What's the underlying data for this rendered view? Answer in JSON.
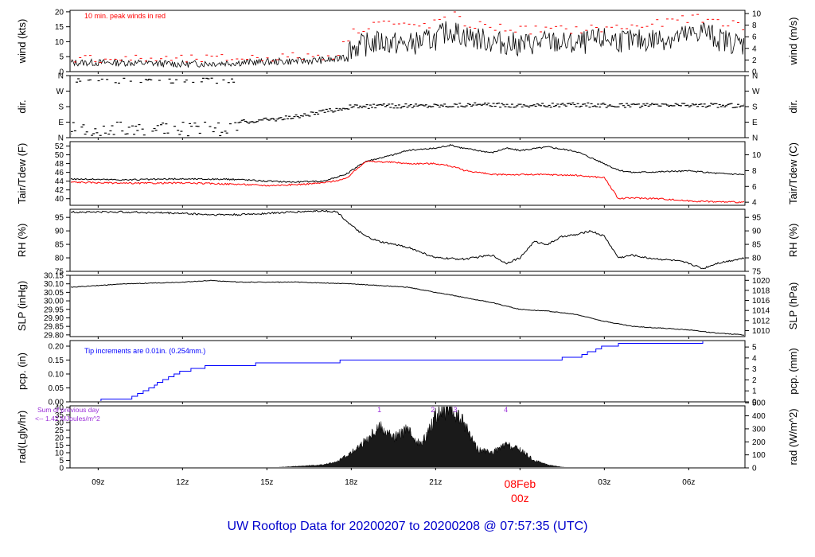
{
  "title": "UW Rooftop Data for 20200207  to  20200208 @ 07:57:35  (UTC)",
  "colors": {
    "title": "#0000cc",
    "red": "#ff0000",
    "blue": "#0000ff",
    "purple": "#9b30d9",
    "black": "#000000"
  },
  "x_axis": {
    "ticks": [
      "09z",
      "12z",
      "15z",
      "18z",
      "21z",
      "03z",
      "06z"
    ],
    "tick_hours": [
      9,
      12,
      15,
      18,
      21,
      27,
      30
    ],
    "date_label": "08Feb",
    "date_sub": "00z",
    "date_hour": 24,
    "range_hours": [
      8.0,
      32.0
    ]
  },
  "panels": [
    {
      "key": "wind",
      "left_label": "wind (kts)",
      "right_label": "wind (m/s)",
      "left_ticks": [
        "0",
        "5",
        "10",
        "15",
        "20"
      ],
      "right_ticks": [
        "0",
        "2",
        "4",
        "6",
        "8",
        "10"
      ],
      "left_range": [
        0,
        20.5
      ],
      "note": "10 min. peak winds in red"
    },
    {
      "key": "dir",
      "left_label": "dir.",
      "right_label": "dir.",
      "left_ticks": [
        "N",
        "E",
        "S",
        "W",
        "N"
      ],
      "right_ticks": [
        "N",
        "E",
        "S",
        "W",
        "N"
      ],
      "left_range": [
        0,
        360
      ]
    },
    {
      "key": "temp",
      "left_label": "Tair/Tdew (F)",
      "right_label": "Tair/Tdew (C)",
      "left_ticks": [
        "40",
        "42",
        "44",
        "46",
        "48",
        "50",
        "52"
      ],
      "right_ticks": [
        "4",
        "6",
        "8",
        "10"
      ],
      "left_range": [
        38.5,
        53.0
      ]
    },
    {
      "key": "rh",
      "left_label": "RH (%)",
      "right_label": "RH (%)",
      "left_ticks": [
        "75",
        "80",
        "85",
        "90",
        "95"
      ],
      "right_ticks": [
        "75",
        "80",
        "85",
        "90",
        "95"
      ],
      "left_range": [
        75,
        98
      ]
    },
    {
      "key": "slp",
      "left_label": "SLP (inHg)",
      "right_label": "SLP (hPa)",
      "left_ticks": [
        "29.80",
        "29.85",
        "29.90",
        "29.95",
        "30.00",
        "30.05",
        "30.10",
        "30.15"
      ],
      "right_ticks": [
        "1010",
        "1012",
        "1014",
        "1016",
        "1018",
        "1020"
      ],
      "left_range": [
        29.79,
        30.15
      ]
    },
    {
      "key": "pcp",
      "left_label": "pcp. (in)",
      "right_label": "pcp. (mm)",
      "left_ticks": [
        "0.00",
        "0.05",
        "0.10",
        "0.15",
        "0.20"
      ],
      "right_ticks": [
        "0",
        "1",
        "2",
        "3",
        "4",
        "5"
      ],
      "left_range": [
        0,
        0.22
      ],
      "note": "Tip increments are 0.01in. (0.254mm.)"
    },
    {
      "key": "rad",
      "left_label": "rad(Lgly/hr)",
      "right_label": "rad (W/m^2)",
      "left_ticks": [
        "0",
        "5",
        "10",
        "15",
        "20",
        "25",
        "30",
        "35",
        "40"
      ],
      "right_ticks": [
        "0",
        "100",
        "200",
        "300",
        "400",
        "500"
      ],
      "left_range": [
        0,
        41
      ],
      "note1": "Sum of previous day",
      "note2": "<-- 1.42 MJoules/m^2",
      "markers": [
        "1",
        "2",
        "3",
        "4"
      ],
      "marker_hours": [
        19.0,
        20.9,
        21.7,
        23.5
      ]
    }
  ],
  "chart_data": {
    "type": "line",
    "x_units": "hours UTC from 2020-02-07 00z",
    "series": [
      {
        "name": "wind speed (kts)",
        "x": [
          8,
          10,
          12,
          14,
          16,
          17.5,
          18,
          19,
          20,
          21,
          21.5,
          22,
          23,
          24,
          25,
          26,
          27,
          28,
          29,
          30,
          30.5,
          31,
          32
        ],
        "values": [
          3,
          3,
          2.5,
          3,
          3.5,
          4,
          8,
          10,
          9,
          11,
          14,
          12,
          10,
          9,
          10,
          9,
          11,
          10,
          11,
          12,
          14,
          11,
          9
        ]
      },
      {
        "name": "peak wind 10 min (kts)",
        "x": [
          8,
          12,
          16,
          17.5,
          18,
          19,
          20,
          21,
          21.5,
          22,
          24,
          26,
          28,
          29,
          30,
          31,
          32
        ],
        "values": [
          4.5,
          4,
          5,
          5.5,
          13,
          17,
          15,
          16,
          20,
          16,
          14,
          14,
          15,
          16,
          18,
          17,
          15
        ]
      },
      {
        "name": "wind direction (deg)",
        "x": [
          8,
          10,
          12,
          13.5,
          14,
          16,
          17,
          18,
          20,
          22,
          24,
          26,
          28,
          30,
          32
        ],
        "values": [
          355,
          355,
          350,
          345,
          90,
          120,
          150,
          180,
          185,
          190,
          188,
          190,
          185,
          190,
          185
        ]
      },
      {
        "name": "Tair (F)",
        "x": [
          8,
          10,
          12,
          14,
          15,
          16,
          17,
          17.8,
          18.5,
          19.5,
          20,
          21,
          21.5,
          22,
          23,
          23.5,
          24,
          25,
          26,
          27,
          27.5,
          28,
          30,
          31,
          32
        ],
        "values": [
          44.5,
          44.3,
          44.5,
          44.4,
          44,
          43.8,
          44,
          45.5,
          48.5,
          50,
          51,
          51.5,
          52.2,
          51.5,
          50.5,
          51.5,
          51,
          51.8,
          50.8,
          48,
          46.5,
          46,
          46.3,
          45.8,
          45.5
        ]
      },
      {
        "name": "Tdew (F)",
        "x": [
          8,
          10,
          12,
          14,
          15,
          16,
          17,
          17.8,
          18.5,
          19.5,
          20,
          21,
          21.5,
          22,
          23,
          24,
          25,
          26,
          27,
          27.5,
          28,
          29,
          30,
          31,
          32
        ],
        "values": [
          43.8,
          43.5,
          43.6,
          43.3,
          43,
          43.2,
          43.6,
          44.5,
          48.5,
          48.3,
          48,
          48,
          47.5,
          46.5,
          45.5,
          45.5,
          45.5,
          45.3,
          44.8,
          40,
          40.2,
          40,
          39.5,
          39.3,
          39.2
        ]
      },
      {
        "name": "RH (%)",
        "x": [
          8,
          10,
          12,
          13,
          14,
          16,
          17,
          17.5,
          18,
          18.5,
          19,
          20,
          20.5,
          21,
          22,
          23,
          23.5,
          24,
          24.5,
          25,
          25.5,
          26,
          26.5,
          27,
          27.5,
          28,
          28.5,
          29,
          29.5,
          30,
          30.5,
          31,
          32
        ],
        "values": [
          97,
          97,
          96.5,
          96,
          96,
          97,
          97.5,
          97,
          92,
          88,
          86,
          84,
          82,
          80,
          79.5,
          81,
          78,
          80,
          86,
          85,
          88,
          88.5,
          90,
          88,
          80,
          81,
          80,
          79.5,
          79,
          78,
          76,
          78,
          80
        ]
      },
      {
        "name": "SLP (inHg)",
        "x": [
          8,
          10,
          12,
          13,
          14,
          16,
          18,
          19,
          20,
          21,
          22,
          23,
          24,
          25,
          26,
          27,
          28,
          29,
          30,
          31,
          32
        ],
        "values": [
          30.08,
          30.1,
          30.11,
          30.12,
          30.11,
          30.11,
          30.1,
          30.09,
          30.08,
          30.05,
          30.02,
          29.99,
          29.95,
          29.94,
          29.92,
          29.88,
          29.85,
          29.84,
          29.83,
          29.81,
          29.8
        ]
      },
      {
        "name": "precipitation (in)",
        "x": [
          8,
          10,
          10.5,
          11,
          11.5,
          12,
          12.5,
          13,
          14,
          15,
          16,
          17,
          18,
          19,
          20,
          21,
          22,
          23,
          24,
          25,
          26,
          26.5,
          27,
          28,
          29,
          30,
          31,
          32
        ],
        "values": [
          0.0,
          0.01,
          0.03,
          0.06,
          0.09,
          0.11,
          0.12,
          0.13,
          0.13,
          0.14,
          0.14,
          0.14,
          0.15,
          0.15,
          0.15,
          0.15,
          0.15,
          0.15,
          0.15,
          0.15,
          0.16,
          0.18,
          0.2,
          0.21,
          0.21,
          0.21,
          0.22,
          0.22
        ]
      },
      {
        "name": "radiation (Lgly/hr)",
        "x": [
          15,
          16,
          17,
          17.5,
          18,
          18.5,
          19,
          19.5,
          20,
          20.5,
          21,
          21.5,
          22,
          22.5,
          23,
          23.5,
          24,
          24.5,
          25,
          25.5,
          26
        ],
        "values": [
          0,
          1,
          2,
          4,
          10,
          18,
          28,
          20,
          25,
          15,
          35,
          38,
          30,
          12,
          10,
          15,
          12,
          5,
          2,
          0.5,
          0
        ]
      }
    ]
  }
}
